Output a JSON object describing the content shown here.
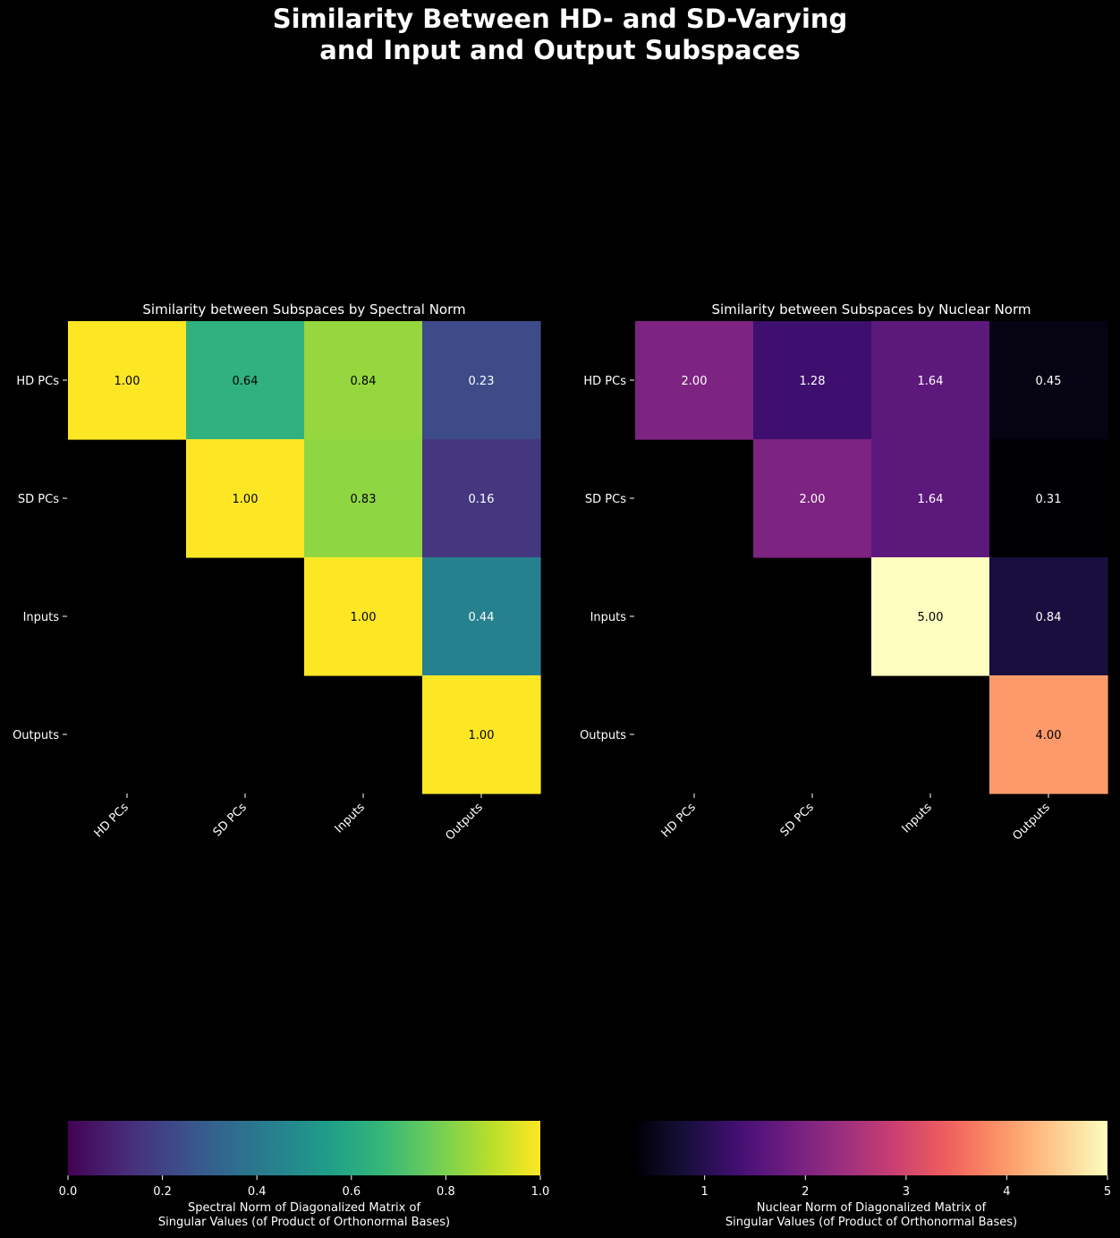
{
  "title_lines": [
    "Similarity Between HD- and SD-Varying",
    "and Input and Output Subspaces"
  ],
  "chart_data": [
    {
      "type": "heatmap",
      "title": "Similarity between Subspaces by Spectral Norm",
      "row_labels": [
        "HD PCs",
        "SD PCs",
        "Inputs",
        "Outputs"
      ],
      "col_labels": [
        "HD PCs",
        "SD PCs",
        "Inputs",
        "Outputs"
      ],
      "values": [
        [
          1.0,
          0.64,
          0.84,
          0.23
        ],
        [
          null,
          1.0,
          0.83,
          0.16
        ],
        [
          null,
          null,
          1.0,
          0.44
        ],
        [
          null,
          null,
          null,
          1.0
        ]
      ],
      "colormap": "viridis",
      "vmin": 0.0,
      "vmax": 1.0,
      "colorbar": {
        "ticks": [
          0.0,
          0.2,
          0.4,
          0.6,
          0.8,
          1.0
        ],
        "tick_labels": [
          "0.0",
          "0.2",
          "0.4",
          "0.6",
          "0.8",
          "1.0"
        ],
        "label_lines": [
          "Spectral Norm of Diagonalized Matrix of",
          "Singular Values (of Product of Orthonormal Bases)"
        ]
      }
    },
    {
      "type": "heatmap",
      "title": "Similarity between Subspaces by Nuclear Norm",
      "row_labels": [
        "HD PCs",
        "SD PCs",
        "Inputs",
        "Outputs"
      ],
      "col_labels": [
        "HD PCs",
        "SD PCs",
        "Inputs",
        "Outputs"
      ],
      "values": [
        [
          2.0,
          1.28,
          1.64,
          0.45
        ],
        [
          null,
          2.0,
          1.64,
          0.31
        ],
        [
          null,
          null,
          5.0,
          0.84
        ],
        [
          null,
          null,
          null,
          4.0
        ]
      ],
      "colormap": "magma",
      "vmin": 0.31,
      "vmax": 5.0,
      "colorbar": {
        "ticks": [
          1,
          2,
          3,
          4,
          5
        ],
        "tick_labels": [
          "1",
          "2",
          "3",
          "4",
          "5"
        ],
        "label_lines": [
          "Nuclear Norm of Diagonalized Matrix of",
          "Singular Values (of Product of Orthonormal Bases)"
        ]
      }
    }
  ]
}
